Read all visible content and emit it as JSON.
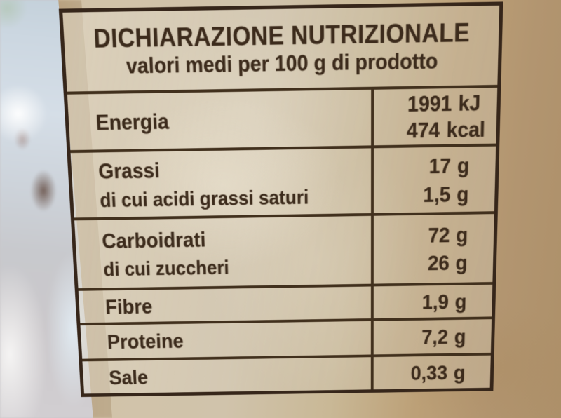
{
  "colors": {
    "package_beige": "#d0c3ab",
    "package_tan": "#b29570",
    "ink_brown": "#3c2b1c",
    "table_border": "#36261a",
    "background_blue_gray": "#ccd7e1"
  },
  "nutrition_table": {
    "title": "DICHIARAZIONE NUTRIZIONALE",
    "subtitle": "valori medi per 100 g di prodotto",
    "rows": [
      {
        "name": "Energia",
        "sub": "",
        "values": [
          {
            "num": "1991",
            "unit": "kJ"
          },
          {
            "num": "474",
            "unit": "kcal"
          }
        ]
      },
      {
        "name": "Grassi",
        "sub": "di cui acidi grassi saturi",
        "values": [
          {
            "num": "17",
            "unit": "g"
          },
          {
            "num": "1,5",
            "unit": "g"
          }
        ]
      },
      {
        "name": "Carboidrati",
        "sub": "di cui zuccheri",
        "values": [
          {
            "num": "72",
            "unit": "g"
          },
          {
            "num": "26",
            "unit": "g"
          }
        ]
      },
      {
        "name": "Fibre",
        "sub": "",
        "values": [
          {
            "num": "1,9",
            "unit": "g"
          }
        ]
      },
      {
        "name": "Proteine",
        "sub": "",
        "values": [
          {
            "num": "7,2",
            "unit": "g"
          }
        ]
      },
      {
        "name": "Sale",
        "sub": "",
        "values": [
          {
            "num": "0,33",
            "unit": "g"
          }
        ]
      }
    ]
  }
}
